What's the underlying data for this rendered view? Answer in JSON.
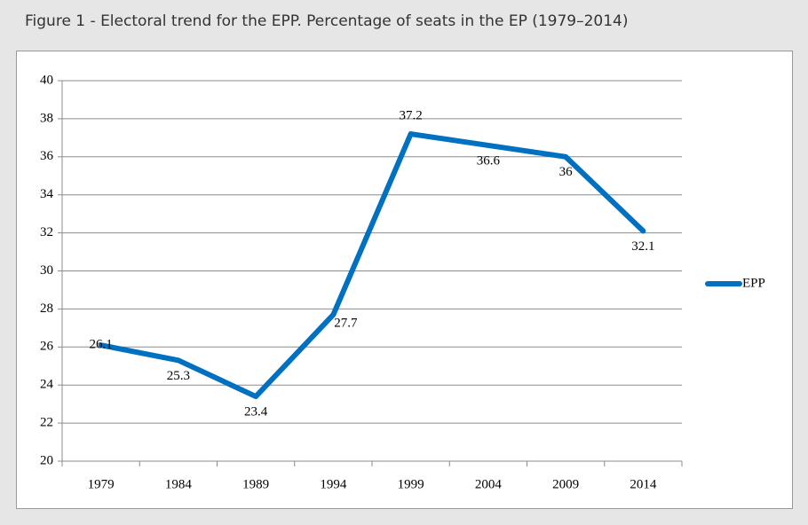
{
  "chart_data": {
    "type": "line",
    "title": "Figure 1 - Electoral trend for the EPP. Percentage of seats in the EP (1979–2014)",
    "categories": [
      "1979",
      "1984",
      "1989",
      "1994",
      "1999",
      "2004",
      "2009",
      "2014"
    ],
    "series": [
      {
        "name": "EPP",
        "color": "#0070c0",
        "values": [
          26.1,
          25.3,
          23.4,
          27.7,
          37.2,
          36.6,
          36,
          32.1
        ]
      }
    ],
    "ylim": [
      20,
      40
    ],
    "yticks": [
      20,
      22,
      24,
      26,
      28,
      30,
      32,
      34,
      36,
      38,
      40
    ],
    "grid": true,
    "legend": "right"
  }
}
